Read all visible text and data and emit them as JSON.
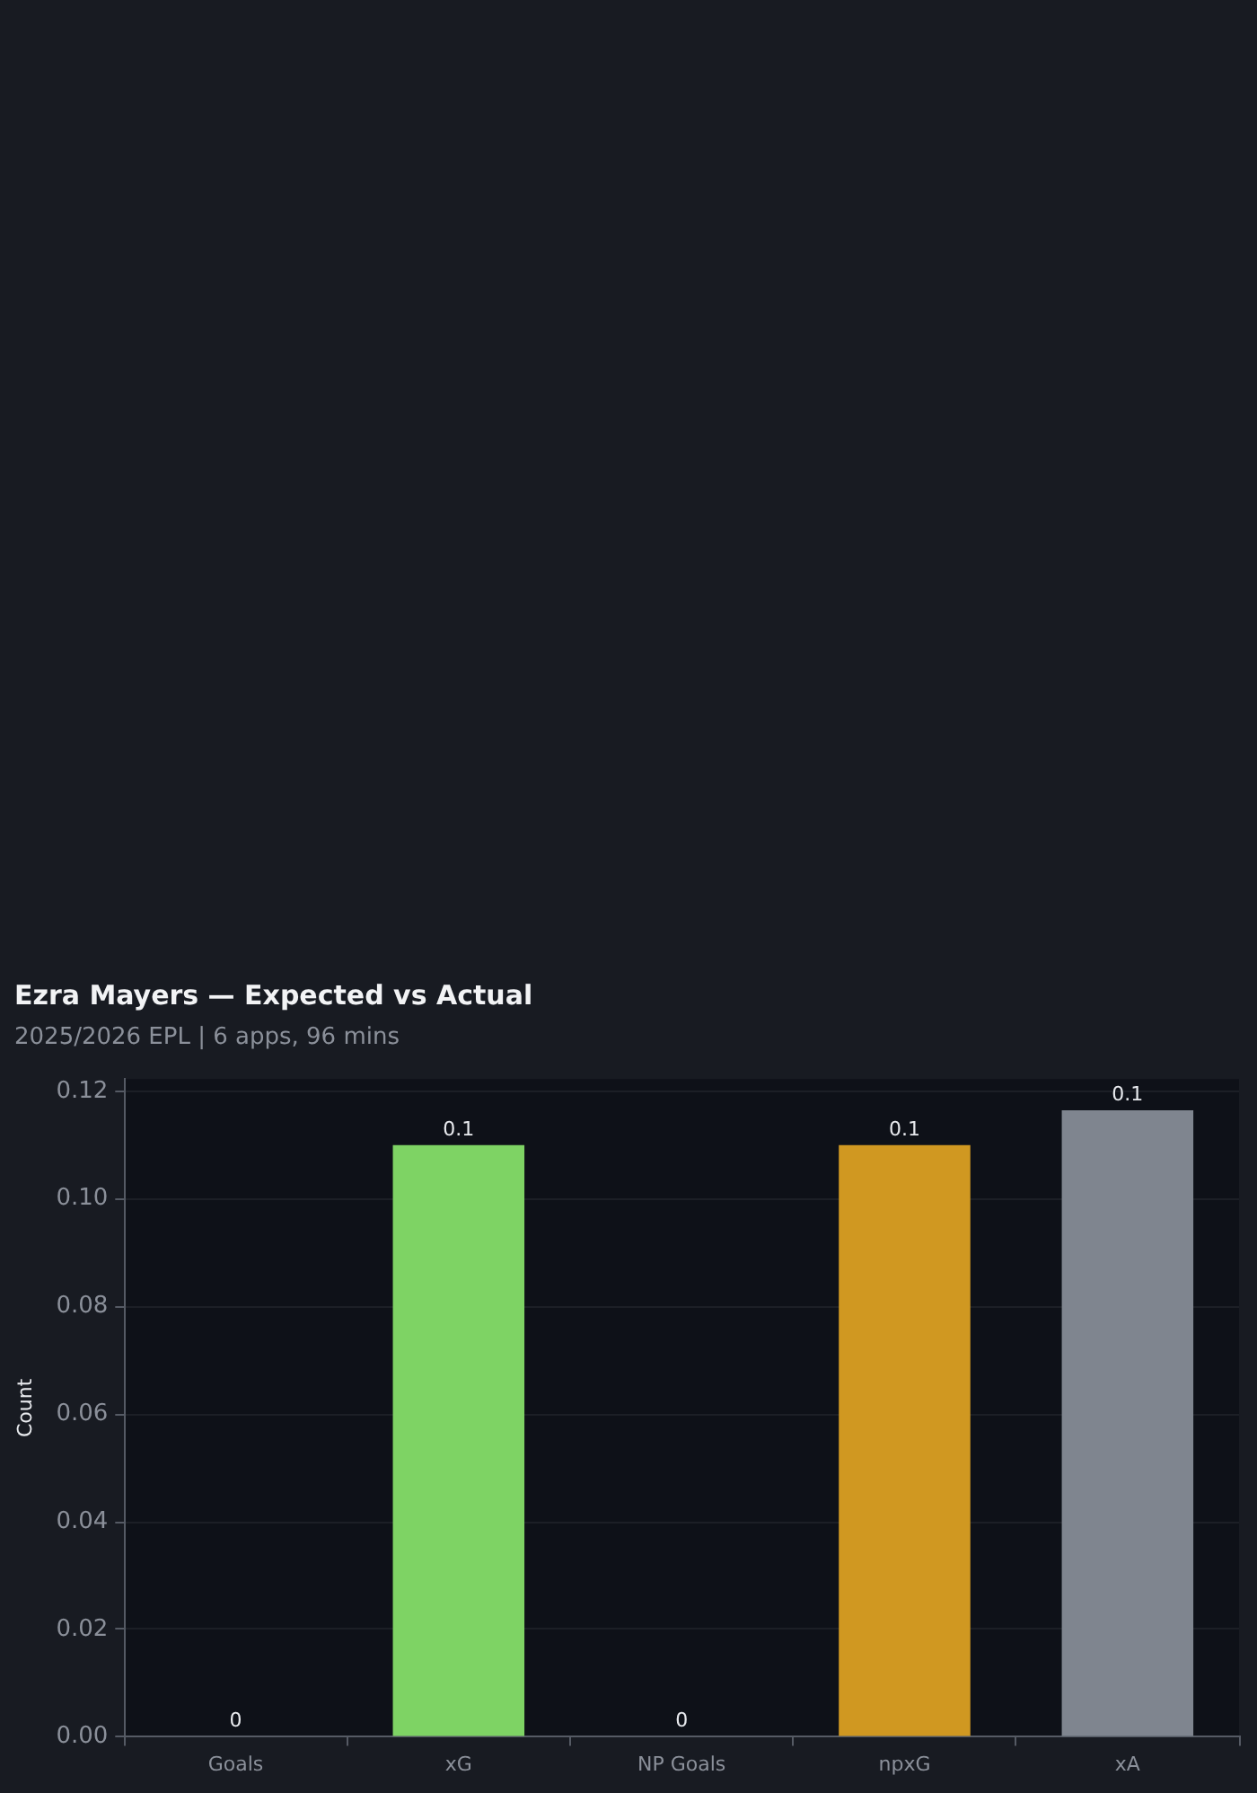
{
  "chart_data": {
    "type": "bar",
    "title": "Ezra Mayers — Expected vs Actual",
    "subtitle": "2025/2026 EPL | 6 apps, 96 mins",
    "ylabel": "Count",
    "categories": [
      "Goals",
      "xG",
      "NP Goals",
      "npxG",
      "xA"
    ],
    "values": [
      0,
      0.11,
      0,
      0.11,
      0.1165
    ],
    "colors": [
      "#7ed364",
      "#7ed364",
      "#d09821",
      "#d09821",
      "#7f858f"
    ],
    "value_labels": [
      "0",
      "0.1",
      "0",
      "0.1",
      "0.1"
    ],
    "ylim": [
      0,
      0.1223
    ],
    "yticks": [
      {
        "value": 0,
        "label": "0.00"
      },
      {
        "value": 0.02,
        "label": "0.02"
      },
      {
        "value": 0.04,
        "label": "0.04"
      },
      {
        "value": 0.06,
        "label": "0.06"
      },
      {
        "value": 0.08,
        "label": "0.08"
      },
      {
        "value": 0.1,
        "label": "0.10"
      },
      {
        "value": 0.12,
        "label": "0.12"
      }
    ],
    "grid": "y",
    "legend": false
  }
}
